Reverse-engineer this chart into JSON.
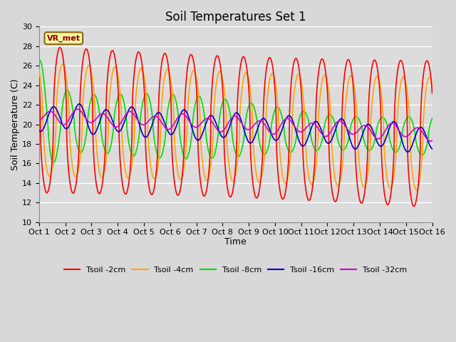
{
  "title": "Soil Temperatures Set 1",
  "xlabel": "Time",
  "ylabel": "Soil Temperature (C)",
  "ylim": [
    10,
    30
  ],
  "xlim": [
    0,
    15
  ],
  "xtick_labels": [
    "Oct 1",
    "Oct 2",
    "Oct 3",
    "Oct 4",
    "Oct 5",
    "Oct 6",
    "Oct 7",
    "Oct 8",
    "Oct 9",
    "Oct 10",
    "Oct 11",
    "Oct 12",
    "Oct 13",
    "Oct 14",
    "Oct 15",
    "Oct 16"
  ],
  "ytick_values": [
    10,
    12,
    14,
    16,
    18,
    20,
    22,
    24,
    26,
    28,
    30
  ],
  "fig_bg_color": "#d8d8d8",
  "plot_bg_color": "#dcdcdc",
  "grid_color": "#ffffff",
  "series": {
    "Tsoil -2cm": {
      "color": "#ff0000",
      "lw": 1.2
    },
    "Tsoil -4cm": {
      "color": "#ffa500",
      "lw": 1.2
    },
    "Tsoil -8cm": {
      "color": "#00dd00",
      "lw": 1.2
    },
    "Tsoil -16cm": {
      "color": "#0000cc",
      "lw": 1.2
    },
    "Tsoil -32cm": {
      "color": "#cc00cc",
      "lw": 1.2
    }
  },
  "annotation_text": "VR_met",
  "annotation_fontsize": 8,
  "title_fontsize": 12,
  "axis_label_fontsize": 9,
  "tick_fontsize": 8
}
